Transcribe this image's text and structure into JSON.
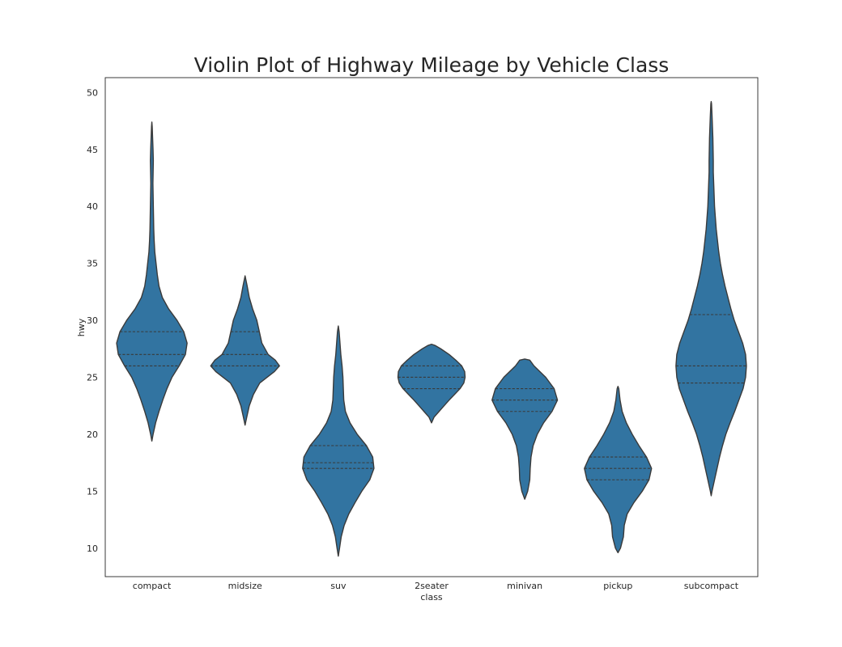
{
  "chart_data": {
    "type": "violin",
    "title": "Violin Plot of Highway Mileage by Vehicle Class",
    "xlabel": "class",
    "ylabel": "hwy",
    "categories": [
      "compact",
      "midsize",
      "suv",
      "2seater",
      "minivan",
      "pickup",
      "subcompact"
    ],
    "yticks": [
      10,
      15,
      20,
      25,
      30,
      35,
      40,
      45,
      50
    ],
    "ylim": [
      7.5,
      51.3
    ],
    "grid": false,
    "inner": "quartile",
    "color": "#3274a1",
    "edge_color": "#3a3a3a",
    "violins": [
      {
        "category": "compact",
        "quartiles": [
          26,
          27,
          29
        ],
        "profile": [
          [
            19.4,
            0.0
          ],
          [
            20,
            0.03
          ],
          [
            21,
            0.09
          ],
          [
            22,
            0.17
          ],
          [
            23,
            0.26
          ],
          [
            24,
            0.36
          ],
          [
            25,
            0.48
          ],
          [
            26,
            0.65
          ],
          [
            27,
            0.8
          ],
          [
            28,
            0.84
          ],
          [
            29,
            0.76
          ],
          [
            30,
            0.6
          ],
          [
            31,
            0.4
          ],
          [
            32,
            0.25
          ],
          [
            33,
            0.17
          ],
          [
            34,
            0.13
          ],
          [
            35,
            0.1
          ],
          [
            36,
            0.07
          ],
          [
            37,
            0.055
          ],
          [
            38,
            0.045
          ],
          [
            39,
            0.04
          ],
          [
            40,
            0.035
          ],
          [
            41,
            0.03
          ],
          [
            42,
            0.025
          ],
          [
            43,
            0.03
          ],
          [
            44,
            0.035
          ],
          [
            45,
            0.028
          ],
          [
            46,
            0.018
          ],
          [
            47,
            0.008
          ],
          [
            47.4,
            0.0
          ]
        ]
      },
      {
        "category": "midsize",
        "quartiles": [
          26,
          27,
          29
        ],
        "profile": [
          [
            20.8,
            0.0
          ],
          [
            21.5,
            0.04
          ],
          [
            22.5,
            0.1
          ],
          [
            23.5,
            0.2
          ],
          [
            24.5,
            0.35
          ],
          [
            25.5,
            0.7
          ],
          [
            26,
            0.82
          ],
          [
            26.5,
            0.72
          ],
          [
            27,
            0.55
          ],
          [
            28,
            0.4
          ],
          [
            29,
            0.34
          ],
          [
            30,
            0.28
          ],
          [
            31,
            0.18
          ],
          [
            32,
            0.1
          ],
          [
            33,
            0.05
          ],
          [
            33.9,
            0.0
          ]
        ]
      },
      {
        "category": "suv",
        "quartiles": [
          17,
          17.5,
          19
        ],
        "profile": [
          [
            9.3,
            0.0
          ],
          [
            10,
            0.03
          ],
          [
            11,
            0.07
          ],
          [
            12,
            0.14
          ],
          [
            13,
            0.25
          ],
          [
            14,
            0.4
          ],
          [
            15,
            0.56
          ],
          [
            16,
            0.75
          ],
          [
            17,
            0.85
          ],
          [
            18,
            0.82
          ],
          [
            19,
            0.67
          ],
          [
            20,
            0.45
          ],
          [
            21,
            0.28
          ],
          [
            22,
            0.17
          ],
          [
            23,
            0.13
          ],
          [
            24,
            0.12
          ],
          [
            25,
            0.11
          ],
          [
            26,
            0.09
          ],
          [
            27,
            0.06
          ],
          [
            28,
            0.04
          ],
          [
            29,
            0.02
          ],
          [
            29.5,
            0.0
          ]
        ]
      },
      {
        "category": "2seater",
        "quartiles": [
          24,
          25,
          26
        ],
        "profile": [
          [
            21.0,
            0.0
          ],
          [
            21.5,
            0.06
          ],
          [
            22,
            0.18
          ],
          [
            22.5,
            0.3
          ],
          [
            23,
            0.42
          ],
          [
            23.5,
            0.55
          ],
          [
            24,
            0.68
          ],
          [
            24.5,
            0.77
          ],
          [
            25,
            0.8
          ],
          [
            25.5,
            0.79
          ],
          [
            26,
            0.72
          ],
          [
            26.5,
            0.58
          ],
          [
            27,
            0.42
          ],
          [
            27.5,
            0.22
          ],
          [
            27.8,
            0.08
          ],
          [
            27.9,
            0.0
          ]
        ]
      },
      {
        "category": "minivan",
        "quartiles": [
          22,
          23,
          24
        ],
        "profile": [
          [
            14.3,
            0.0
          ],
          [
            15,
            0.07
          ],
          [
            16,
            0.12
          ],
          [
            17,
            0.13
          ],
          [
            18,
            0.15
          ],
          [
            19,
            0.2
          ],
          [
            20,
            0.3
          ],
          [
            21,
            0.45
          ],
          [
            22,
            0.65
          ],
          [
            23,
            0.78
          ],
          [
            24,
            0.7
          ],
          [
            25,
            0.5
          ],
          [
            26,
            0.22
          ],
          [
            26.5,
            0.12
          ],
          [
            26.6,
            0.0
          ]
        ]
      },
      {
        "category": "pickup",
        "quartiles": [
          16,
          17,
          18
        ],
        "profile": [
          [
            9.6,
            0.0
          ],
          [
            10,
            0.06
          ],
          [
            11,
            0.13
          ],
          [
            12,
            0.15
          ],
          [
            13,
            0.22
          ],
          [
            14,
            0.38
          ],
          [
            15,
            0.58
          ],
          [
            16,
            0.74
          ],
          [
            17,
            0.8
          ],
          [
            18,
            0.68
          ],
          [
            19,
            0.5
          ],
          [
            20,
            0.34
          ],
          [
            21,
            0.2
          ],
          [
            22,
            0.1
          ],
          [
            23,
            0.05
          ],
          [
            24,
            0.02
          ],
          [
            24.2,
            0.0
          ]
        ]
      },
      {
        "category": "subcompact",
        "quartiles": [
          24.5,
          26,
          30.5
        ],
        "profile": [
          [
            14.6,
            0.0
          ],
          [
            15,
            0.02
          ],
          [
            16,
            0.08
          ],
          [
            17,
            0.14
          ],
          [
            18,
            0.2
          ],
          [
            19,
            0.27
          ],
          [
            20,
            0.35
          ],
          [
            21,
            0.45
          ],
          [
            22,
            0.56
          ],
          [
            23,
            0.66
          ],
          [
            24,
            0.76
          ],
          [
            25,
            0.82
          ],
          [
            26,
            0.84
          ],
          [
            27,
            0.82
          ],
          [
            28,
            0.75
          ],
          [
            29,
            0.65
          ],
          [
            30,
            0.55
          ],
          [
            31,
            0.47
          ],
          [
            32,
            0.4
          ],
          [
            33,
            0.33
          ],
          [
            34,
            0.27
          ],
          [
            35,
            0.22
          ],
          [
            36,
            0.18
          ],
          [
            37,
            0.15
          ],
          [
            38,
            0.12
          ],
          [
            39,
            0.1
          ],
          [
            40,
            0.08
          ],
          [
            41,
            0.07
          ],
          [
            42,
            0.06
          ],
          [
            43,
            0.05
          ],
          [
            44,
            0.05
          ],
          [
            45,
            0.045
          ],
          [
            46,
            0.04
          ],
          [
            47,
            0.03
          ],
          [
            48,
            0.02
          ],
          [
            49,
            0.008
          ],
          [
            49.2,
            0.0
          ]
        ]
      }
    ]
  }
}
